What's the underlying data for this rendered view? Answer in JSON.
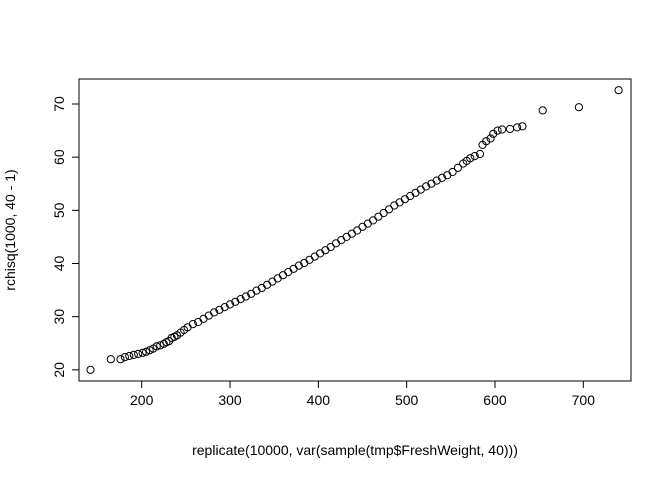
{
  "chart_data": {
    "type": "scatter",
    "title": "",
    "xlabel": "replicate(10000, var(sample(tmp$FreshWeight, 40)))",
    "ylabel": "rchisq(1000, 40 - 1)",
    "xlim": [
      129,
      754
    ],
    "ylim": [
      17.9,
      74.7
    ],
    "x_ticks": [
      200,
      300,
      400,
      500,
      600,
      700
    ],
    "x_tick_labels": [
      "200",
      "300",
      "400",
      "500",
      "600",
      "700"
    ],
    "y_ticks": [
      20,
      30,
      40,
      50,
      60,
      70
    ],
    "y_tick_labels": [
      "20",
      "30",
      "40",
      "50",
      "60",
      "70"
    ],
    "grid": false,
    "legend": "none",
    "marker": "open-circle",
    "point_color": "#000000",
    "points": [
      [
        142,
        20.0
      ],
      [
        165,
        22.0
      ],
      [
        176,
        22.0
      ],
      [
        181,
        22.4
      ],
      [
        186,
        22.6
      ],
      [
        191,
        22.8
      ],
      [
        196,
        23.0
      ],
      [
        201,
        23.2
      ],
      [
        205,
        23.4
      ],
      [
        209,
        23.7
      ],
      [
        213,
        24.0
      ],
      [
        217,
        24.4
      ],
      [
        221,
        24.6
      ],
      [
        225,
        24.9
      ],
      [
        228,
        25.2
      ],
      [
        231,
        25.4
      ],
      [
        234,
        26.0
      ],
      [
        237,
        26.2
      ],
      [
        240,
        26.5
      ],
      [
        244,
        27.0
      ],
      [
        248,
        27.5
      ],
      [
        252,
        28.0
      ],
      [
        258,
        28.6
      ],
      [
        264,
        29.0
      ],
      [
        270,
        29.6
      ],
      [
        276,
        30.2
      ],
      [
        282,
        30.8
      ],
      [
        288,
        31.3
      ],
      [
        294,
        31.8
      ],
      [
        300,
        32.3
      ],
      [
        306,
        32.8
      ],
      [
        312,
        33.3
      ],
      [
        318,
        33.8
      ],
      [
        324,
        34.3
      ],
      [
        330,
        34.9
      ],
      [
        336,
        35.4
      ],
      [
        342,
        36.0
      ],
      [
        348,
        36.6
      ],
      [
        354,
        37.2
      ],
      [
        360,
        37.8
      ],
      [
        366,
        38.4
      ],
      [
        372,
        39.0
      ],
      [
        378,
        39.6
      ],
      [
        384,
        40.1
      ],
      [
        390,
        40.7
      ],
      [
        396,
        41.3
      ],
      [
        402,
        41.9
      ],
      [
        408,
        42.5
      ],
      [
        414,
        43.1
      ],
      [
        420,
        43.8
      ],
      [
        426,
        44.4
      ],
      [
        432,
        45.0
      ],
      [
        438,
        45.6
      ],
      [
        444,
        46.2
      ],
      [
        450,
        46.9
      ],
      [
        456,
        47.5
      ],
      [
        462,
        48.1
      ],
      [
        468,
        48.8
      ],
      [
        474,
        49.5
      ],
      [
        480,
        50.2
      ],
      [
        486,
        50.9
      ],
      [
        492,
        51.5
      ],
      [
        498,
        52.1
      ],
      [
        504,
        52.7
      ],
      [
        510,
        53.3
      ],
      [
        516,
        53.9
      ],
      [
        522,
        54.5
      ],
      [
        528,
        55.0
      ],
      [
        534,
        55.6
      ],
      [
        540,
        56.1
      ],
      [
        546,
        56.6
      ],
      [
        552,
        57.2
      ],
      [
        558,
        58.0
      ],
      [
        564,
        58.8
      ],
      [
        568,
        59.3
      ],
      [
        572,
        59.8
      ],
      [
        577,
        60.2
      ],
      [
        583,
        60.6
      ],
      [
        586,
        62.3
      ],
      [
        590,
        63.0
      ],
      [
        595,
        63.5
      ],
      [
        598,
        64.4
      ],
      [
        603,
        65.0
      ],
      [
        608,
        65.2
      ],
      [
        617,
        65.3
      ],
      [
        625,
        65.6
      ],
      [
        631,
        65.8
      ],
      [
        654,
        68.8
      ],
      [
        695,
        69.4
      ],
      [
        740,
        72.6
      ]
    ]
  }
}
